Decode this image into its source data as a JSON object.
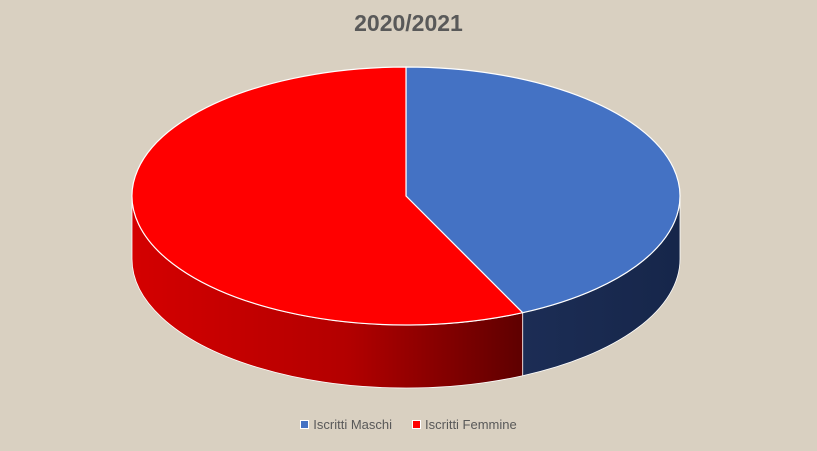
{
  "chart_data": {
    "type": "pie",
    "title": "2020/2021",
    "categories": [
      "Iscritti Maschi",
      "Iscritti Femmine"
    ],
    "values": [
      43,
      57
    ],
    "colors": [
      "#4472c4",
      "#ff0000"
    ],
    "side_colors": [
      "#1a2b52",
      "#c00000"
    ],
    "legend_position": "bottom",
    "three_d": true
  }
}
